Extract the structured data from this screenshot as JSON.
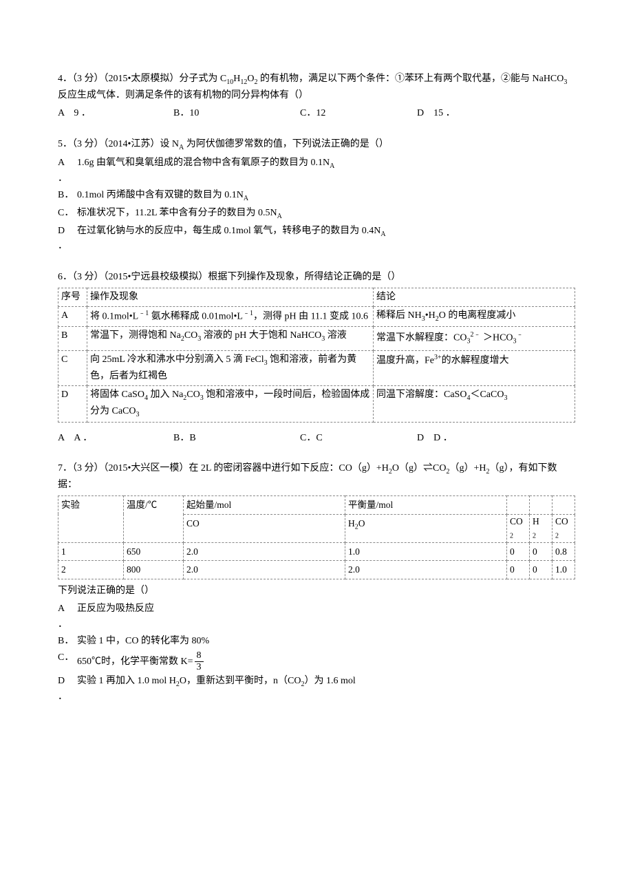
{
  "q4": {
    "stem": "4．（3 分）（2015•太原模拟）分子式为 C₁₀H₁₂O₂ 的有机物，满足以下两个条件：①苯环上有两个取代基，②能与 NaHCO₃ 反应生成气体．则满足条件的该有机物的同分异构体有（）",
    "opts": {
      "A": "9",
      "B": "B．10",
      "C": "C．12",
      "D": "15"
    },
    "labA": "A",
    "labD": "D",
    "dotA": "．",
    "dotD": "．"
  },
  "q5": {
    "stem": "5．（3 分）（2014•江苏）设 N_A 为阿伏伽德罗常数的值，下列说法正确的是（）",
    "items": [
      {
        "lab": "A",
        "dot": "．",
        "text": "1.6g 由氧气和臭氧组成的混合物中含有氧原子的数目为 0.1N_A"
      },
      {
        "lab": "B．",
        "dot": "",
        "text": "0.1mol 丙烯酸中含有双键的数目为 0.1N_A"
      },
      {
        "lab": "C．",
        "dot": "",
        "text": "标准状况下，11.2L 苯中含有分子的数目为 0.5N_A"
      },
      {
        "lab": "D",
        "dot": "．",
        "text": "在过氧化钠与水的反应中，每生成 0.1mol 氧气，转移电子的数目为 0.4N_A"
      }
    ]
  },
  "q6": {
    "stem": "6．（3 分）（2015•宁远县校级模拟）根据下列操作及现象，所得结论正确的是（）",
    "table": {
      "head": [
        "序号",
        "操作及现象",
        "结论"
      ],
      "rows": [
        {
          "n": "A",
          "op": "将 0.1mol•L⁻¹ 氨水稀释成 0.01mol•L⁻¹，测得 pH 由 11.1 变成 10.6",
          "res": "稀释后 NH₃•H₂O 的电离程度减小"
        },
        {
          "n": "B",
          "op": "常温下，测得饱和 Na₂CO₃ 溶液的 pH 大于饱和 NaHCO₃ 溶液",
          "res": "常温下水解程度：CO₃²⁻ ＞HCO₃⁻"
        },
        {
          "n": "C",
          "op": "向 25mL 冷水和沸水中分别滴入 5 滴 FeCl₃ 饱和溶液，前者为黄色，后者为红褐色",
          "res": "温度升高，Fe³⁺的水解程度增大"
        },
        {
          "n": "D",
          "op": "将固体 CaSO₄ 加入 Na₂CO₃ 饱和溶液中，一段时间后，检验固体成分为 CaCO₃",
          "res": "同温下溶解度：CaSO₄＜CaCO₃"
        }
      ]
    },
    "opts": {
      "A": "A",
      "B": "B．B",
      "C": "C．C",
      "D": "D"
    },
    "labA": "A",
    "labD": "D",
    "dotA": "．",
    "dotD": "．"
  },
  "q7": {
    "stem1": "7．（3 分）（2015•大兴区一模）在 2L 的密闭容器中进行如下反应：CO（g）+H₂O（g）⇌CO₂（g）+H₂（g），有如下数据：",
    "table": {
      "head_row1": [
        "实验",
        "温度/℃",
        "起始量/mol",
        "",
        "平衡量/mol",
        "",
        "",
        ""
      ],
      "head_row2": [
        "",
        "",
        "CO",
        "",
        "H₂O",
        "",
        "CO₂",
        "H₂",
        "CO₂"
      ],
      "rows": [
        [
          "1",
          "650",
          "2.0",
          "",
          "1.0",
          "",
          "0",
          "0",
          "0.8"
        ],
        [
          "2",
          "800",
          "2.0",
          "",
          "2.0",
          "",
          "0",
          "0",
          "1.0"
        ]
      ],
      "widths": [
        "86px",
        "84px",
        "220px",
        "",
        "190px",
        "",
        "24px",
        "24px",
        "24px"
      ]
    },
    "after": "下列说法正确的是（）",
    "items": [
      {
        "lab": "A",
        "dot": "．",
        "text": "正反应为吸热反应"
      },
      {
        "lab": "B．",
        "dot": "",
        "text": "实验 1 中，CO 的转化率为 80%"
      },
      {
        "lab": "C．",
        "dot": "",
        "text_pre": "650℃时，化学平衡常数 K=",
        "frac_num": "8",
        "frac_den": "3"
      },
      {
        "lab": "D",
        "dot": "．",
        "text": "实验 1 再加入 1.0 mol H₂O，重新达到平衡时，n（CO₂）为 1.6 mol"
      }
    ]
  }
}
